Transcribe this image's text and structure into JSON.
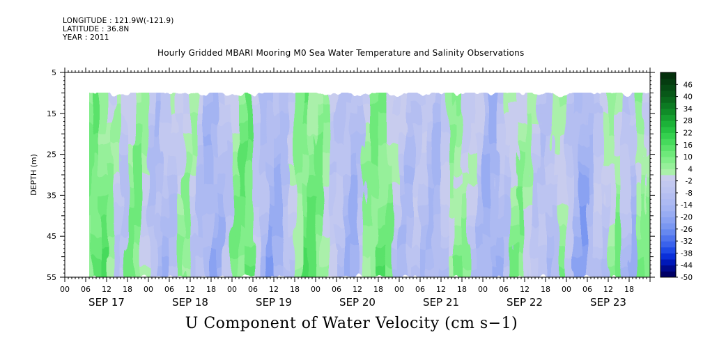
{
  "header": {
    "longitude": "LONGITUDE : 121.9W(-121.9)",
    "latitude": "LATITUDE : 36.8N",
    "year": "YEAR : 2011",
    "title": "Hourly Gridded MBARI Mooring M0 Sea Water Temperature and Salinity Observations"
  },
  "chart_data": {
    "type": "heatmap",
    "title": "Hourly Gridded MBARI Mooring M0 Sea Water Temperature and Salinity Observations",
    "xlabel": "U Component of Water Velocity (cm s−1)",
    "ylabel": "DEPTH (m)",
    "yticks": [
      5,
      15,
      25,
      35,
      45,
      55
    ],
    "ylim": [
      5,
      55
    ],
    "y_reversed": true,
    "data_depth_range": [
      10,
      55
    ],
    "xlim_hours": [
      0,
      168
    ],
    "data_start_hour": 6,
    "x_hour_ticks": [
      "00",
      "06",
      "12",
      "18",
      "00",
      "06",
      "12",
      "18",
      "00",
      "06",
      "12",
      "18",
      "00",
      "06",
      "12",
      "18",
      "00",
      "06",
      "12",
      "18",
      "00",
      "06",
      "12",
      "18",
      "00",
      "06",
      "12",
      "18"
    ],
    "x_dates": [
      "SEP 17",
      "SEP 18",
      "SEP 19",
      "SEP 20",
      "SEP 21",
      "SEP 22",
      "SEP 23"
    ],
    "colorbar": {
      "levels": [
        -50,
        -44,
        -38,
        -32,
        -26,
        -20,
        -14,
        -8,
        -2,
        4,
        10,
        16,
        22,
        28,
        34,
        40,
        46
      ],
      "min": -50,
      "max": 52,
      "step": 3,
      "negative_colors": [
        "#000066",
        "#000a8c",
        "#0018b8",
        "#0a2fd9",
        "#1f4ae6",
        "#3a62ec",
        "#4f74ee",
        "#6688f0",
        "#7a97f1",
        "#8aa2f2",
        "#98acf2",
        "#a4b4f2",
        "#adbaf2",
        "#b4bef1",
        "#bcc4f1",
        "#c2c8f0",
        "#c8ccee"
      ],
      "positive_colors": [
        "#aaf0aa",
        "#96f09a",
        "#82ee8a",
        "#6ee97a",
        "#5ae26a",
        "#46da5c",
        "#34d04e",
        "#26c242",
        "#1cb238",
        "#16a030",
        "#108c28",
        "#0c7a22",
        "#0a681c",
        "#085818",
        "#064a14",
        "#053c10",
        "#04300c"
      ]
    },
    "columns_u_profile": [
      [
        6,
        8
      ],
      [
        8,
        12
      ],
      [
        10,
        10
      ],
      [
        12,
        4
      ],
      [
        14,
        -2
      ],
      [
        16,
        -6
      ],
      [
        18,
        6
      ],
      [
        20,
        8
      ],
      [
        22,
        2
      ],
      [
        24,
        -8
      ],
      [
        26,
        -12
      ],
      [
        28,
        -10
      ],
      [
        30,
        -6
      ],
      [
        32,
        2
      ],
      [
        34,
        4
      ],
      [
        36,
        -2
      ],
      [
        38,
        -8
      ],
      [
        40,
        -14
      ],
      [
        42,
        -16
      ],
      [
        44,
        -12
      ],
      [
        46,
        -6
      ],
      [
        48,
        6
      ],
      [
        50,
        10
      ],
      [
        52,
        12
      ],
      [
        54,
        -4
      ],
      [
        56,
        -12
      ],
      [
        58,
        -16
      ],
      [
        60,
        -14
      ],
      [
        62,
        -10
      ],
      [
        64,
        -4
      ],
      [
        66,
        6
      ],
      [
        68,
        12
      ],
      [
        70,
        10
      ],
      [
        72,
        8
      ],
      [
        74,
        4
      ],
      [
        76,
        -4
      ],
      [
        78,
        -8
      ],
      [
        80,
        -12
      ],
      [
        82,
        -14
      ],
      [
        84,
        -8
      ],
      [
        86,
        4
      ],
      [
        88,
        8
      ],
      [
        90,
        10
      ],
      [
        92,
        6
      ],
      [
        94,
        -4
      ],
      [
        96,
        -8
      ],
      [
        98,
        -10
      ],
      [
        100,
        -6
      ],
      [
        102,
        -8
      ],
      [
        104,
        -10
      ],
      [
        106,
        -12
      ],
      [
        108,
        -6
      ],
      [
        110,
        4
      ],
      [
        112,
        6
      ],
      [
        114,
        2
      ],
      [
        116,
        -4
      ],
      [
        118,
        -8
      ],
      [
        120,
        -14
      ],
      [
        122,
        -16
      ],
      [
        124,
        -10
      ],
      [
        126,
        -6
      ],
      [
        128,
        4
      ],
      [
        130,
        6
      ],
      [
        132,
        2
      ],
      [
        134,
        -4
      ],
      [
        136,
        -8
      ],
      [
        138,
        -10
      ],
      [
        140,
        -4
      ],
      [
        142,
        4
      ],
      [
        144,
        -6
      ],
      [
        146,
        -14
      ],
      [
        148,
        -18
      ],
      [
        150,
        -12
      ],
      [
        152,
        -6
      ],
      [
        154,
        -4
      ],
      [
        156,
        4
      ],
      [
        158,
        6
      ],
      [
        160,
        -8
      ],
      [
        162,
        -12
      ],
      [
        164,
        6
      ],
      [
        166,
        4
      ],
      [
        168,
        2
      ]
    ]
  }
}
